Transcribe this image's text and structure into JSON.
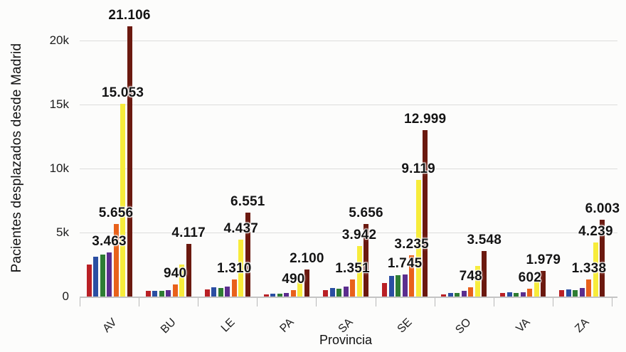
{
  "colors": {
    "background": "#fcfcfb",
    "grid": "#dcdcdc",
    "axis": "#c4c4c4",
    "label_text": "#141414"
  },
  "chart_data": {
    "type": "bar",
    "title": "",
    "xlabel": "Provincia",
    "ylabel": "Pacientes desplazados desde Madrid",
    "categories": [
      "AV",
      "BU",
      "LE",
      "PA",
      "SA",
      "SE",
      "SO",
      "VA",
      "ZA"
    ],
    "ylim": [
      0,
      22000
    ],
    "grid": true,
    "legend_position": "none",
    "y_ticks": [
      {
        "value": 0,
        "label": "0"
      },
      {
        "value": 5000,
        "label": "5k"
      },
      {
        "value": 10000,
        "label": "10k"
      },
      {
        "value": 15000,
        "label": "15k"
      },
      {
        "value": 20000,
        "label": "20k"
      }
    ],
    "series": [
      {
        "name": "series-1-red",
        "color": "#b92025",
        "values": [
          2500,
          450,
          560,
          160,
          500,
          1070,
          180,
          300,
          500
        ],
        "labels": [
          null,
          null,
          null,
          null,
          null,
          null,
          null,
          null,
          null
        ]
      },
      {
        "name": "series-2-blue",
        "color": "#2b4ea2",
        "values": [
          3100,
          450,
          700,
          210,
          660,
          1630,
          280,
          320,
          560
        ],
        "labels": [
          null,
          null,
          null,
          null,
          null,
          null,
          null,
          null,
          null
        ]
      },
      {
        "name": "series-3-green",
        "color": "#2e7d33",
        "values": [
          3300,
          420,
          660,
          220,
          620,
          1690,
          290,
          300,
          510
        ],
        "labels": [
          null,
          null,
          null,
          null,
          null,
          null,
          null,
          null,
          null
        ]
      },
      {
        "name": "series-4-purple",
        "color": "#5b2d8e",
        "values": [
          3463,
          480,
          790,
          270,
          780,
          1745,
          420,
          340,
          660
        ],
        "labels": [
          "3.463",
          null,
          null,
          null,
          null,
          "1.745",
          null,
          null,
          null
        ]
      },
      {
        "name": "series-5-orange",
        "color": "#e8611b",
        "values": [
          5656,
          940,
          1310,
          490,
          1351,
          3235,
          748,
          602,
          1338
        ],
        "labels": [
          "5.656",
          "940",
          "1.310",
          "490",
          "1.351",
          "3.235",
          "748",
          "602",
          "1.338"
        ]
      },
      {
        "name": "series-6-yellow",
        "color": "#f7ec3b",
        "values": [
          15053,
          2500,
          4437,
          1250,
          3942,
          9119,
          2400,
          1300,
          4239
        ],
        "labels": [
          "15.053",
          null,
          "4.437",
          null,
          "3.942",
          "9.119",
          null,
          null,
          "4.239"
        ]
      },
      {
        "name": "series-7-darkred",
        "color": "#6b190f",
        "values": [
          21106,
          4117,
          6551,
          2100,
          5656,
          12999,
          3548,
          1979,
          6003
        ],
        "labels": [
          "21.106",
          "4.117",
          "6.551",
          "2.100",
          "5.656",
          "12.999",
          "3.548",
          "1.979",
          "6.003"
        ]
      }
    ]
  }
}
